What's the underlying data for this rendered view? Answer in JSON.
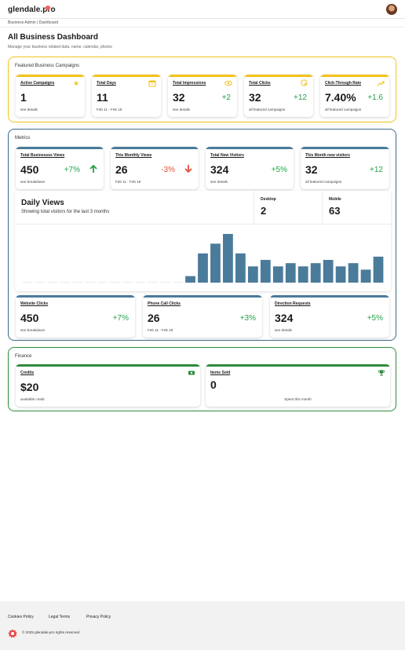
{
  "header": {
    "logo": "glendale.pro",
    "breadcrumb": "Business Admin  |  Dashboard"
  },
  "page": {
    "title": "All Business Dashboard",
    "subtitle": "Manage your business related data, name, calendar, photos"
  },
  "colors": {
    "featured_border": "#f2c21b",
    "metrics_border": "#3a6b8a",
    "finance_border": "#2e8b3a",
    "metrics_bar": "#4a7b9a",
    "finance_bar": "#2e8b3a",
    "delta_up": "#22a34a",
    "delta_down": "#e0503a"
  },
  "featured": {
    "title": "Featured Business Campaigns",
    "cards": [
      {
        "title": "Active Campaigns",
        "icon": "star-icon",
        "value": "1",
        "delta": "",
        "foot": "see details"
      },
      {
        "title": "Total Days",
        "icon": "calendar-icon",
        "value": "11",
        "delta": "",
        "foot": "Feb 11 - Feb 19"
      },
      {
        "title": "Total Impressions",
        "icon": "eye-icon",
        "value": "32",
        "delta": "+2",
        "foot": "see details"
      },
      {
        "title": "Total Clicks",
        "icon": "cursor-click-icon",
        "value": "32",
        "delta": "+12",
        "foot": "all featured campaigns"
      },
      {
        "title": "Click-Through Rate",
        "icon": "trending-up-icon",
        "value": "7.40%",
        "delta": "+1.6",
        "foot": "all featured campaigns"
      }
    ]
  },
  "metrics": {
    "title": "Metrics",
    "top_cards": [
      {
        "title": "Total Businesses Views",
        "value": "450",
        "delta": "+7%",
        "trend": "up",
        "foot": "see breakdown"
      },
      {
        "title": "This Monthly Views",
        "value": "26",
        "delta": "-3%",
        "trend": "down",
        "foot": "Feb 11 - Feb 19"
      },
      {
        "title": "Total New Visitors",
        "value": "324",
        "delta": "+5%",
        "trend": "",
        "foot": "see details"
      },
      {
        "title": "This Month new visitors",
        "value": "32",
        "delta": "+12",
        "trend": "",
        "foot": "all featured campaigns"
      }
    ],
    "daily": {
      "title": "Daily Views",
      "subtitle": "Showing total visitors for the last 3 months",
      "desktop_label": "Desktop",
      "desktop_value": "2",
      "mobile_label": "Mobile",
      "mobile_value": "63"
    },
    "bottom_cards": [
      {
        "title": "Website Clicks",
        "value": "450",
        "delta": "+7%",
        "foot": "see breakdown"
      },
      {
        "title": "Phone Call Clicks",
        "value": "26",
        "delta": "+3%",
        "foot": "Feb 11 - Feb 19"
      },
      {
        "title": "Direction Requests",
        "value": "324",
        "delta": "+5%",
        "foot": "see details"
      }
    ]
  },
  "chart_data": {
    "type": "bar",
    "title": "Daily Views",
    "subtitle": "Showing total visitors for the last 3 months",
    "values": [
      0,
      0,
      0,
      0,
      0,
      0,
      0,
      0,
      0,
      0,
      0,
      0,
      0,
      2,
      9,
      12,
      15,
      9,
      5,
      7,
      5,
      6,
      5,
      6,
      7,
      5,
      6,
      4,
      8
    ],
    "ylim": [
      0,
      15
    ],
    "bar_color": "#4a7b9a",
    "grid": false
  },
  "finance": {
    "title": "Finance",
    "credits": {
      "title": "Credits",
      "icon": "money-icon",
      "value": "$20",
      "foot": "available credit"
    },
    "items": {
      "title": "Items Sold",
      "icon": "trophy-icon",
      "value": "0",
      "foot": "Spent this month"
    }
  },
  "footer": {
    "links": [
      "Cookies Policy",
      "Legal Terms",
      "Privacy Policy"
    ],
    "copyright": "© 2025 glendale.pro rights reserved."
  }
}
